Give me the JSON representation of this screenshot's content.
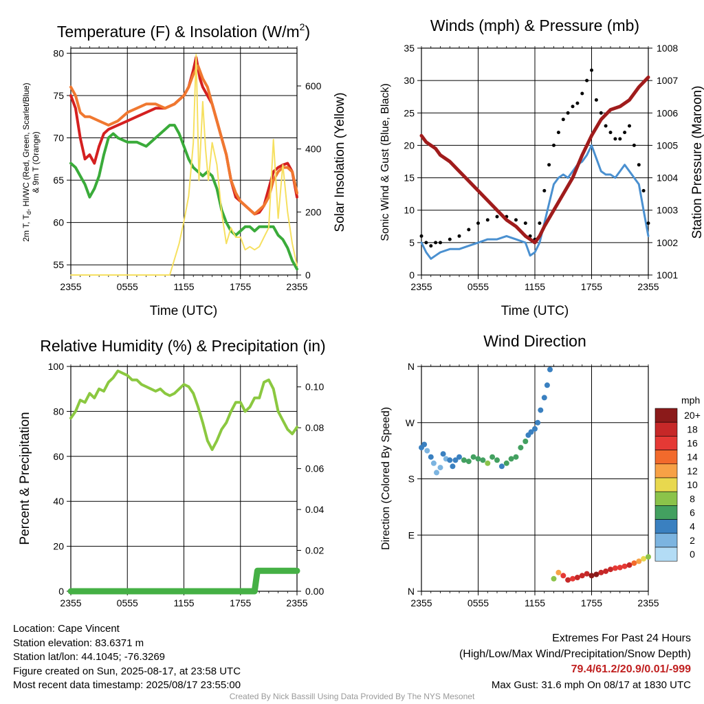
{
  "charts": {
    "temp": {
      "title": "Temperature (F) & Insolation (W/m",
      "title_sup": "2",
      "title_close": ")",
      "ylabel_line1a": "2m T, T",
      "ylabel_sub": "d",
      "ylabel_line1b": ", HI/WC (Red, Green, Scarlet/Blue)",
      "ylabel_line2": "& 9m T (Orange)",
      "ylabel_right": "Solar Insolation (Yellow)",
      "xlabel": "Time (UTC)"
    },
    "wind": {
      "title": "Winds (mph) & Pressure (mb)",
      "ylabel": "Sonic Wind & Gust (Blue, Black)",
      "ylabel_right": "Station Pressure (Maroon)",
      "xlabel": "Time (UTC)"
    },
    "rh": {
      "title": "Relative Humidity (%) & Precipitation (in)",
      "ylabel": "Percent & Precipitation"
    },
    "dir": {
      "title": "Wind Direction",
      "ylabel": "Direction (Colored By Speed)",
      "legend_title": "mph",
      "legend_labels": [
        "20+",
        "18",
        "16",
        "14",
        "12",
        "10",
        "8",
        "6",
        "4",
        "2",
        "0"
      ],
      "legend_colors": [
        "#8b1a1a",
        "#c62828",
        "#e53935",
        "#f26a2c",
        "#f7a146",
        "#e8d84e",
        "#8bc34a",
        "#43a060",
        "#3a80c0",
        "#7cb4e0",
        "#b3dcf5"
      ]
    }
  },
  "chart_data": [
    {
      "type": "line",
      "title": "Temperature (F) & Insolation (W/m2)",
      "xlabel": "Time (UTC)",
      "ylabel": "2m T, Td, HI/WC (Red, Green, Scarlet/Blue) & 9m T (Orange)",
      "ylabel_right": "Solar Insolation (Yellow)",
      "x_ticks": [
        "2355",
        "0555",
        "1155",
        "1755",
        "2355"
      ],
      "y_ticks": [
        55,
        60,
        65,
        70,
        75,
        80
      ],
      "y2_ticks": [
        0,
        200,
        400,
        600
      ],
      "ylim": [
        53.8,
        80.6
      ],
      "y2lim": [
        0,
        720
      ],
      "xlim": [
        0,
        24
      ],
      "series": [
        {
          "name": "2m T",
          "color": "#d42020",
          "axis": "left",
          "x": [
            0,
            0.5,
            1,
            1.5,
            2,
            2.5,
            3,
            3.5,
            4,
            5,
            6,
            7,
            8,
            9,
            10,
            11,
            11.5,
            12,
            12.5,
            13,
            13.3,
            13.7,
            14,
            14.5,
            15,
            15.5,
            16,
            16.5,
            17,
            17.5,
            18,
            18.5,
            19,
            19.5,
            20,
            20.5,
            21,
            21.5,
            22,
            22.5,
            23,
            23.5,
            24
          ],
          "y": [
            75,
            73.5,
            70,
            67.5,
            68,
            67,
            69,
            70.5,
            71,
            71.5,
            72,
            72.5,
            73,
            73.5,
            73.5,
            74,
            74.5,
            75,
            76,
            78,
            79.5,
            77,
            76,
            75,
            74,
            72,
            70,
            68,
            65,
            63,
            62.5,
            62,
            61.5,
            61,
            61.2,
            62,
            64,
            66,
            66.5,
            66.8,
            67,
            66,
            63
          ]
        },
        {
          "name": "9m T",
          "color": "#f07830",
          "axis": "left",
          "x": [
            0,
            0.5,
            1,
            1.5,
            2,
            3,
            4,
            5,
            6,
            7,
            8,
            9,
            10,
            11,
            11.5,
            12,
            12.5,
            13,
            13.5,
            14,
            14.5,
            15,
            15.5,
            16,
            16.5,
            17,
            17.5,
            18,
            18.5,
            19,
            19.5,
            20,
            20.5,
            21,
            21.5,
            22,
            22.5,
            23,
            23.5,
            24
          ],
          "y": [
            76,
            75,
            73,
            72.5,
            72.5,
            72,
            71.5,
            72,
            73,
            73.5,
            74,
            74,
            73.5,
            74,
            74.5,
            75,
            76,
            77.5,
            78.5,
            77,
            76,
            74,
            72,
            70,
            68,
            65,
            63.5,
            62.5,
            62,
            61.5,
            61,
            61.5,
            62,
            63,
            65,
            66,
            66.5,
            66.5,
            66,
            63.5
          ]
        },
        {
          "name": "Td",
          "color": "#3aab3a",
          "axis": "left",
          "x": [
            0,
            0.5,
            1,
            1.5,
            2,
            2.5,
            3,
            3.5,
            4,
            4.5,
            5,
            6,
            7,
            8,
            9,
            10,
            10.5,
            11,
            11.5,
            12,
            12.5,
            13,
            13.5,
            14,
            14.5,
            15,
            15.5,
            16,
            16.5,
            17,
            17.5,
            18,
            18.5,
            19,
            19.5,
            20,
            20.5,
            21,
            21.5,
            22,
            22.5,
            23,
            23.5,
            24
          ],
          "y": [
            67,
            66.5,
            65.5,
            64.5,
            63,
            64,
            65.5,
            68,
            70,
            70.5,
            70,
            69.5,
            69.5,
            69,
            70,
            71,
            71.5,
            71.5,
            70.5,
            69,
            67.5,
            66.5,
            66,
            65.5,
            66,
            65.5,
            64,
            61.5,
            60,
            59,
            58.5,
            59,
            59.5,
            59.5,
            59,
            59.5,
            59.5,
            59.5,
            59.5,
            58.5,
            58,
            57,
            55.5,
            54.5
          ]
        },
        {
          "name": "Solar Insolation",
          "color": "#f6e060",
          "axis": "right",
          "x": [
            0,
            10.5,
            11,
            11.5,
            12,
            12.5,
            13,
            13.3,
            13.6,
            14,
            14.3,
            14.6,
            15,
            15.5,
            16,
            16.5,
            17,
            17.5,
            18,
            18.5,
            19,
            19.5,
            20,
            20.5,
            21,
            21.5,
            22,
            22.5,
            23,
            23.5,
            24
          ],
          "y": [
            0,
            0,
            50,
            100,
            170,
            250,
            420,
            700,
            300,
            550,
            400,
            300,
            420,
            350,
            200,
            100,
            150,
            120,
            120,
            80,
            90,
            80,
            90,
            120,
            150,
            430,
            180,
            350,
            200,
            100,
            30
          ]
        }
      ]
    },
    {
      "type": "line",
      "title": "Winds (mph) & Pressure (mb)",
      "xlabel": "Time (UTC)",
      "ylabel": "Sonic Wind & Gust (Blue, Black)",
      "ylabel_right": "Station Pressure (Maroon)",
      "x_ticks": [
        "2355",
        "0555",
        "1155",
        "1755",
        "2355"
      ],
      "y_ticks": [
        0,
        5,
        10,
        15,
        20,
        25,
        30,
        35
      ],
      "y2_ticks": [
        1001,
        1002,
        1003,
        1004,
        1005,
        1006,
        1007,
        1008
      ],
      "ylim": [
        0,
        35
      ],
      "y2lim": [
        1001,
        1008
      ],
      "xlim": [
        0,
        24
      ],
      "series": [
        {
          "name": "Sonic Wind",
          "color": "#4a90d0",
          "axis": "left",
          "x": [
            0,
            0.5,
            1,
            1.5,
            2,
            3,
            4,
            5,
            6,
            7,
            8,
            9,
            10,
            11,
            11.5,
            12,
            12.5,
            13,
            13.5,
            14,
            14.5,
            15,
            15.5,
            16,
            16.5,
            17,
            17.5,
            18,
            18.5,
            19,
            19.5,
            20,
            20.5,
            21,
            21.5,
            22,
            22.5,
            23,
            23.5,
            24
          ],
          "y": [
            5,
            3.5,
            2.5,
            3,
            3.5,
            4,
            4,
            4.5,
            5,
            5.5,
            5.5,
            6,
            5.5,
            5,
            3,
            3.5,
            5,
            8,
            11,
            14,
            15,
            15.5,
            15,
            16,
            17,
            17.5,
            18.5,
            20,
            18,
            16,
            15.5,
            15.5,
            15,
            16,
            17,
            16,
            15,
            14,
            10,
            6
          ]
        },
        {
          "name": "Gust",
          "color": "#000000",
          "axis": "left",
          "x": [
            0,
            0.5,
            1,
            1.5,
            2,
            3,
            4,
            5,
            6,
            7,
            8,
            9,
            10,
            11,
            11.5,
            12,
            12.5,
            13,
            13.5,
            14,
            14.5,
            15,
            15.5,
            16,
            16.5,
            17,
            17.5,
            18,
            18.5,
            19,
            19.5,
            20,
            20.5,
            21,
            21.5,
            22,
            22.5,
            23,
            23.5,
            24
          ],
          "y": [
            6,
            5,
            4.5,
            5,
            5,
            5.5,
            6,
            7,
            8,
            8.5,
            9,
            9,
            8.5,
            8,
            6,
            5.5,
            8,
            13,
            17,
            20,
            22,
            24,
            25,
            26,
            26.5,
            28,
            30,
            31.6,
            27,
            25,
            23,
            22,
            21,
            21,
            22,
            23,
            20,
            17,
            13,
            8
          ]
        },
        {
          "name": "Station Pressure",
          "color": "#a01c1c",
          "axis": "right",
          "x": [
            0,
            0.5,
            1,
            1.5,
            2,
            3,
            4,
            5,
            6,
            7,
            8,
            9,
            10,
            11,
            11.5,
            12,
            12.5,
            13,
            14,
            15,
            16,
            17,
            18,
            19,
            20,
            21,
            22,
            23,
            24
          ],
          "y": [
            1005.3,
            1005.1,
            1005,
            1004.9,
            1004.7,
            1004.5,
            1004.2,
            1003.9,
            1003.6,
            1003.3,
            1003,
            1002.7,
            1002.5,
            1002.2,
            1002.1,
            1002,
            1002.2,
            1002.5,
            1003,
            1003.5,
            1004,
            1004.7,
            1005.3,
            1005.8,
            1006.1,
            1006.2,
            1006.4,
            1006.8,
            1007.1
          ]
        }
      ]
    },
    {
      "type": "line",
      "title": "Relative Humidity (%) & Precipitation (in)",
      "ylabel": "Percent & Precipitation",
      "x_ticks": [
        "2355",
        "0555",
        "1155",
        "1755",
        "2355"
      ],
      "y_ticks": [
        0,
        20,
        40,
        60,
        80,
        100
      ],
      "y2_ticks": [
        "0.00",
        "0.02",
        "0.04",
        "0.06",
        "0.08",
        "0.10"
      ],
      "ylim": [
        0,
        100
      ],
      "y2lim": [
        0,
        0.11
      ],
      "xlim": [
        0,
        24
      ],
      "series": [
        {
          "name": "Relative Humidity",
          "color": "#8bc840",
          "axis": "left",
          "x": [
            0,
            0.5,
            1,
            1.5,
            2,
            2.5,
            3,
            3.5,
            4,
            4.5,
            5,
            5.5,
            6,
            6.5,
            7,
            7.5,
            8,
            8.5,
            9,
            9.5,
            10,
            10.5,
            11,
            11.5,
            12,
            12.5,
            13,
            13.5,
            14,
            14.5,
            15,
            15.5,
            16,
            16.5,
            17,
            17.5,
            18,
            18.5,
            19,
            19.5,
            20,
            20.5,
            21,
            21.5,
            22,
            22.5,
            23,
            23.5,
            24
          ],
          "y": [
            77,
            80,
            85,
            84,
            88,
            86,
            90,
            89,
            93,
            95,
            98,
            97,
            96,
            94,
            94,
            92,
            91,
            90,
            89,
            90,
            88,
            87,
            88,
            90,
            92,
            91,
            88,
            82,
            75,
            67,
            63,
            67,
            72,
            75,
            80,
            84,
            84,
            80,
            82,
            86,
            86,
            93,
            94,
            90,
            80,
            76,
            72,
            70,
            73
          ]
        },
        {
          "name": "Precipitation",
          "color": "#45b045",
          "axis": "right",
          "x": [
            0,
            4,
            8,
            12,
            16,
            19.5,
            19.8,
            20,
            22,
            24
          ],
          "y": [
            0,
            0,
            0,
            0,
            0,
            0,
            0.01,
            0.01,
            0.01,
            0.01
          ]
        }
      ]
    },
    {
      "type": "scatter",
      "title": "Wind Direction",
      "ylabel": "Direction (Colored By Speed)",
      "x_ticks": [
        "2355",
        "0555",
        "1155",
        "1755",
        "2355"
      ],
      "y_ticks": [
        "N",
        "E",
        "S",
        "W",
        "N"
      ],
      "ylim": [
        0,
        360
      ],
      "xlim": [
        0,
        24
      ],
      "colorbar_title": "mph",
      "series": [
        {
          "name": "Direction",
          "x": [
            0,
            0.3,
            0.6,
            1,
            1.3,
            1.6,
            2,
            2.3,
            2.6,
            3,
            3.3,
            3.6,
            4,
            4.5,
            5,
            5.5,
            6,
            6.5,
            7,
            7.5,
            8,
            8.5,
            9,
            9.5,
            10,
            10.5,
            11,
            11.3,
            11.6,
            12,
            12.3,
            12.6,
            13,
            13.3,
            13.6,
            14,
            14.5,
            15,
            15.5,
            16,
            16.5,
            17,
            17.5,
            18,
            18.5,
            19,
            19.5,
            20,
            20.5,
            21,
            21.5,
            22,
            22.5,
            23,
            23.5,
            24
          ],
          "y": [
            230,
            235,
            225,
            215,
            205,
            190,
            198,
            220,
            212,
            210,
            200,
            210,
            215,
            210,
            208,
            215,
            212,
            210,
            205,
            215,
            210,
            200,
            205,
            212,
            215,
            230,
            240,
            250,
            255,
            260,
            270,
            290,
            310,
            330,
            355,
            20,
            30,
            25,
            18,
            20,
            22,
            25,
            28,
            25,
            27,
            30,
            32,
            35,
            37,
            38,
            40,
            42,
            45,
            48,
            52,
            55
          ],
          "speed": [
            4,
            3,
            2,
            3,
            2,
            1,
            2,
            3,
            2,
            4,
            3,
            4,
            4,
            5,
            5,
            6,
            6,
            5,
            7,
            6,
            5,
            4,
            5,
            6,
            6,
            5,
            5,
            4,
            3,
            4,
            3,
            3,
            4,
            3,
            3,
            8,
            12,
            15,
            17,
            16,
            17,
            18,
            17,
            19,
            19,
            18,
            17,
            17,
            16,
            15,
            16,
            17,
            14,
            12,
            9,
            7
          ]
        }
      ]
    }
  ],
  "info": {
    "location": "Location: Cape Vincent",
    "elevation": "Station elevation: 83.6371 m",
    "latlon": "Station lat/lon: 44.1045; -76.3269",
    "created": "Figure created on Sun, 2025-08-17, at 23:58 UTC",
    "recent": "Most recent data timestamp: 2025/08/17 23:55:00"
  },
  "extremes": {
    "title": "Extremes For Past 24 Hours",
    "subtitle": "(High/Low/Max Wind/Precipitation/Snow Depth)",
    "values": "79.4/61.2/20.9/0.01/-999",
    "gust": "Max Gust: 31.6 mph On 08/17 at 1830 UTC"
  },
  "credit": "Created By Nick Bassill Using Data Provided By The NYS Mesonet"
}
